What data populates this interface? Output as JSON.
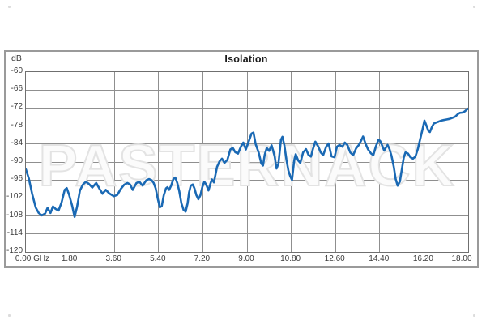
{
  "watermark": "PASTERNACK",
  "chart_data": {
    "type": "line",
    "title": "Isolation",
    "ylabel": "dB",
    "xlabel": "",
    "x_unit": "GHz",
    "xlim": [
      0,
      18
    ],
    "ylim": [
      -120,
      -60
    ],
    "grid": true,
    "legend": "none",
    "y_ticks": [
      {
        "value": -60,
        "label": "-60"
      },
      {
        "value": -66,
        "label": "-66"
      },
      {
        "value": -72,
        "label": "-72"
      },
      {
        "value": -78,
        "label": "-78"
      },
      {
        "value": -84,
        "label": "-84"
      },
      {
        "value": -90,
        "label": "-90"
      },
      {
        "value": -96,
        "label": "-96"
      },
      {
        "value": -102,
        "label": "-102"
      },
      {
        "value": -108,
        "label": "-108"
      },
      {
        "value": -114,
        "label": "-114"
      },
      {
        "value": -120,
        "label": "-120"
      }
    ],
    "x_ticks": [
      {
        "value": 0,
        "label": "0.00 GHz",
        "dx": 9
      },
      {
        "value": 1.8,
        "label": "1.80",
        "dx": 0
      },
      {
        "value": 3.6,
        "label": "3.60",
        "dx": 0
      },
      {
        "value": 5.4,
        "label": "5.40",
        "dx": 0
      },
      {
        "value": 7.2,
        "label": "7.20",
        "dx": 0
      },
      {
        "value": 9,
        "label": "9.00",
        "dx": 0
      },
      {
        "value": 10.8,
        "label": "10.80",
        "dx": 0
      },
      {
        "value": 12.6,
        "label": "12.60",
        "dx": 0
      },
      {
        "value": 14.4,
        "label": "14.40",
        "dx": 0
      },
      {
        "value": 16.2,
        "label": "16.20",
        "dx": 0
      },
      {
        "value": 18,
        "label": "18.00",
        "dx": -7
      }
    ],
    "colors": {
      "curve": "#1a69b4",
      "grid": "#8f8f8f",
      "plot_border": "#6f6f6f",
      "frame_border": "#9a9a9a",
      "tick_text": "#3a3a3a",
      "title_text": "#1a1a1a",
      "watermark_fill": "#fbfbfb",
      "watermark_outline": "#e3e3e3"
    },
    "series": [
      {
        "name": "Isolation",
        "color": "#1a69b4",
        "points": [
          [
            0.0,
            -92.5
          ],
          [
            0.12,
            -95.5
          ],
          [
            0.25,
            -100.5
          ],
          [
            0.4,
            -105.2
          ],
          [
            0.52,
            -107.0
          ],
          [
            0.65,
            -107.8
          ],
          [
            0.78,
            -107.2
          ],
          [
            0.88,
            -105.3
          ],
          [
            1.0,
            -107.0
          ],
          [
            1.1,
            -104.8
          ],
          [
            1.2,
            -105.6
          ],
          [
            1.33,
            -106.2
          ],
          [
            1.45,
            -103.5
          ],
          [
            1.58,
            -99.3
          ],
          [
            1.66,
            -98.7
          ],
          [
            1.76,
            -101.0
          ],
          [
            1.88,
            -104.5
          ],
          [
            1.98,
            -108.3
          ],
          [
            2.08,
            -105.0
          ],
          [
            2.2,
            -99.5
          ],
          [
            2.32,
            -97.5
          ],
          [
            2.44,
            -96.6
          ],
          [
            2.56,
            -97.3
          ],
          [
            2.7,
            -98.5
          ],
          [
            2.86,
            -97.0
          ],
          [
            3.0,
            -99.0
          ],
          [
            3.12,
            -100.6
          ],
          [
            3.25,
            -99.3
          ],
          [
            3.4,
            -100.5
          ],
          [
            3.58,
            -101.4
          ],
          [
            3.72,
            -101.0
          ],
          [
            3.86,
            -99.0
          ],
          [
            4.0,
            -97.6
          ],
          [
            4.13,
            -97.0
          ],
          [
            4.24,
            -97.5
          ],
          [
            4.35,
            -99.3
          ],
          [
            4.5,
            -97.0
          ],
          [
            4.62,
            -96.6
          ],
          [
            4.75,
            -97.9
          ],
          [
            4.9,
            -96.1
          ],
          [
            5.01,
            -95.7
          ],
          [
            5.12,
            -96.1
          ],
          [
            5.2,
            -97.0
          ],
          [
            5.28,
            -98.8
          ],
          [
            5.36,
            -102.0
          ],
          [
            5.45,
            -105.1
          ],
          [
            5.53,
            -104.7
          ],
          [
            5.61,
            -101.1
          ],
          [
            5.7,
            -98.8
          ],
          [
            5.76,
            -98.4
          ],
          [
            5.83,
            -99.3
          ],
          [
            5.91,
            -97.9
          ],
          [
            6.0,
            -95.7
          ],
          [
            6.08,
            -95.2
          ],
          [
            6.16,
            -97.0
          ],
          [
            6.24,
            -99.7
          ],
          [
            6.33,
            -103.8
          ],
          [
            6.42,
            -106.0
          ],
          [
            6.5,
            -106.5
          ],
          [
            6.58,
            -103.8
          ],
          [
            6.64,
            -100.2
          ],
          [
            6.71,
            -97.9
          ],
          [
            6.79,
            -97.5
          ],
          [
            6.86,
            -98.8
          ],
          [
            6.94,
            -101.1
          ],
          [
            7.02,
            -102.4
          ],
          [
            7.1,
            -101.1
          ],
          [
            7.18,
            -98.4
          ],
          [
            7.26,
            -96.6
          ],
          [
            7.34,
            -97.5
          ],
          [
            7.43,
            -99.5
          ],
          [
            7.5,
            -97.5
          ],
          [
            7.57,
            -95.8
          ],
          [
            7.65,
            -96.8
          ],
          [
            7.78,
            -91.6
          ],
          [
            7.88,
            -89.8
          ],
          [
            7.98,
            -88.9
          ],
          [
            8.08,
            -90.3
          ],
          [
            8.2,
            -89.3
          ],
          [
            8.32,
            -85.8
          ],
          [
            8.42,
            -85.3
          ],
          [
            8.52,
            -86.7
          ],
          [
            8.63,
            -87.2
          ],
          [
            8.75,
            -84.9
          ],
          [
            8.85,
            -83.5
          ],
          [
            8.95,
            -85.8
          ],
          [
            9.07,
            -83.1
          ],
          [
            9.18,
            -80.5
          ],
          [
            9.26,
            -80.2
          ],
          [
            9.35,
            -84.0
          ],
          [
            9.47,
            -86.8
          ],
          [
            9.58,
            -90.5
          ],
          [
            9.65,
            -91.2
          ],
          [
            9.72,
            -87.6
          ],
          [
            9.8,
            -85.3
          ],
          [
            9.9,
            -86.3
          ],
          [
            10.0,
            -84.4
          ],
          [
            10.12,
            -88.0
          ],
          [
            10.2,
            -92.2
          ],
          [
            10.28,
            -90.5
          ],
          [
            10.38,
            -82.5
          ],
          [
            10.44,
            -81.6
          ],
          [
            10.52,
            -84.5
          ],
          [
            10.6,
            -89.0
          ],
          [
            10.68,
            -92.8
          ],
          [
            10.76,
            -94.8
          ],
          [
            10.83,
            -96.0
          ],
          [
            10.92,
            -89.5
          ],
          [
            10.98,
            -87.4
          ],
          [
            11.08,
            -89.5
          ],
          [
            11.17,
            -90.3
          ],
          [
            11.28,
            -86.8
          ],
          [
            11.4,
            -85.7
          ],
          [
            11.5,
            -87.6
          ],
          [
            11.6,
            -88.2
          ],
          [
            11.68,
            -85.7
          ],
          [
            11.78,
            -83.2
          ],
          [
            11.9,
            -84.9
          ],
          [
            12.0,
            -86.8
          ],
          [
            12.1,
            -87.7
          ],
          [
            12.22,
            -84.9
          ],
          [
            12.32,
            -83.8
          ],
          [
            12.44,
            -88.1
          ],
          [
            12.56,
            -88.4
          ],
          [
            12.66,
            -84.9
          ],
          [
            12.76,
            -84.3
          ],
          [
            12.88,
            -84.9
          ],
          [
            12.98,
            -83.5
          ],
          [
            13.08,
            -84.3
          ],
          [
            13.2,
            -86.8
          ],
          [
            13.32,
            -87.7
          ],
          [
            13.44,
            -85.4
          ],
          [
            13.55,
            -84.3
          ],
          [
            13.65,
            -82.7
          ],
          [
            13.72,
            -81.5
          ],
          [
            13.82,
            -83.8
          ],
          [
            13.92,
            -85.7
          ],
          [
            14.04,
            -87.1
          ],
          [
            14.14,
            -87.7
          ],
          [
            14.24,
            -84.9
          ],
          [
            14.35,
            -82.5
          ],
          [
            14.42,
            -83.0
          ],
          [
            14.5,
            -84.5
          ],
          [
            14.58,
            -86.2
          ],
          [
            14.65,
            -85.2
          ],
          [
            14.72,
            -84.3
          ],
          [
            14.8,
            -85.7
          ],
          [
            14.88,
            -88.0
          ],
          [
            14.97,
            -91.5
          ],
          [
            15.05,
            -95.7
          ],
          [
            15.13,
            -97.9
          ],
          [
            15.22,
            -96.5
          ],
          [
            15.3,
            -92.5
          ],
          [
            15.38,
            -88.5
          ],
          [
            15.45,
            -86.8
          ],
          [
            15.55,
            -87.2
          ],
          [
            15.65,
            -88.4
          ],
          [
            15.75,
            -88.9
          ],
          [
            15.85,
            -88.2
          ],
          [
            15.95,
            -85.7
          ],
          [
            16.05,
            -82.2
          ],
          [
            16.15,
            -78.8
          ],
          [
            16.22,
            -76.2
          ],
          [
            16.3,
            -77.8
          ],
          [
            16.38,
            -79.6
          ],
          [
            16.44,
            -80.0
          ],
          [
            16.52,
            -78.4
          ],
          [
            16.6,
            -77.2
          ],
          [
            16.7,
            -76.8
          ],
          [
            16.8,
            -76.5
          ],
          [
            16.9,
            -76.2
          ],
          [
            17.0,
            -76.0
          ],
          [
            17.12,
            -75.8
          ],
          [
            17.25,
            -75.6
          ],
          [
            17.38,
            -75.2
          ],
          [
            17.48,
            -74.8
          ],
          [
            17.58,
            -74.0
          ],
          [
            17.66,
            -73.6
          ],
          [
            17.76,
            -73.5
          ],
          [
            17.86,
            -73.1
          ],
          [
            17.94,
            -72.5
          ],
          [
            18.0,
            -72.2
          ]
        ]
      }
    ]
  }
}
